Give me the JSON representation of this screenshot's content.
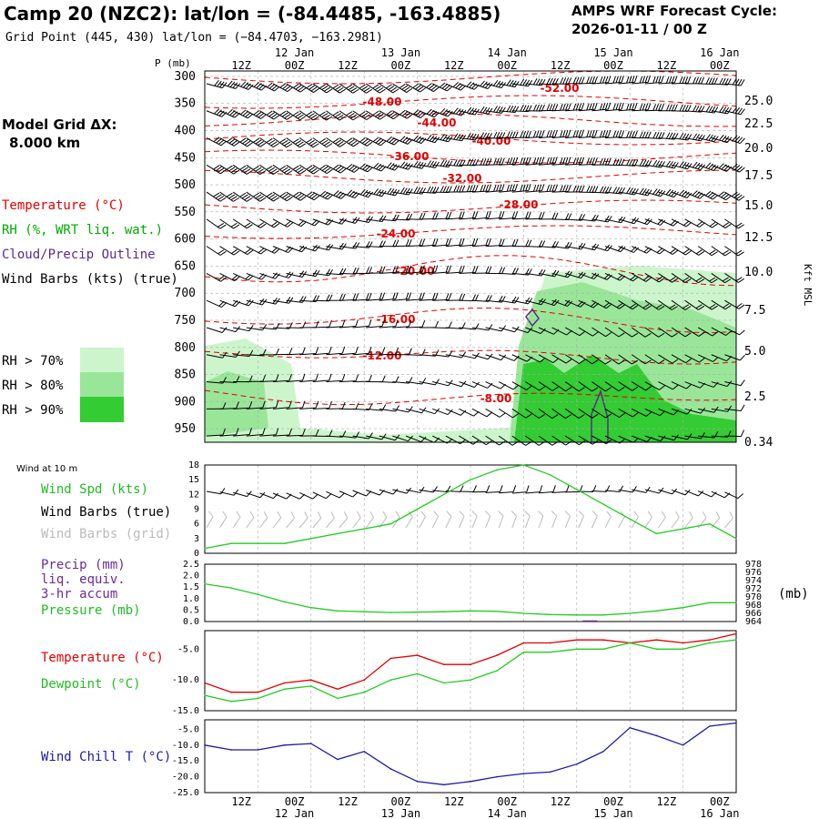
{
  "header": {
    "title": "Camp 20 (NZC2):  lat/lon = (-84.4485, -163.4885)",
    "subtitle": "Grid Point (445, 430) lat/lon = (−84.4703, −163.2981)",
    "cycle_label": "AMPS WRF Forecast Cycle:",
    "cycle_value": "2026-01-11 / 00  Z"
  },
  "left_labels": {
    "grid_title": "Model Grid ΔX:",
    "grid_value": "8.000 km",
    "temperature": "Temperature (°C)",
    "rh": "RH (%, WRT liq. wat.)",
    "cloud": "Cloud/Precip Outline",
    "wind_barbs": "Wind Barbs (kts) (true)",
    "rh70": "RH > 70%",
    "rh80": "RH > 80%",
    "rh90": "RH > 90%",
    "wind10m": "Wind at 10 m",
    "wind_spd": "Wind Spd (kts)",
    "wind_barbs_true": "Wind Barbs (true)",
    "wind_barbs_grid": "Wind Barbs (grid)",
    "precip": "Precip (mm)",
    "liq_equiv": "liq. equiv.",
    "accum": "3-hr accum",
    "pressure": "Pressure (mb)",
    "pressure_units": "(mb)",
    "temp2": "Temperature (°C)",
    "dewpoint": "Dewpoint (°C)",
    "windchill": "Wind Chill T (°C)"
  },
  "colors": {
    "temperature": "#e00000",
    "rh_text": "#00aa00",
    "cloud": "#5a2a8a",
    "rh70": "#ccf5cc",
    "rh80": "#99e699",
    "rh90": "#33cc33",
    "line_green": "#22cc22",
    "windchill": "#1a1aaa",
    "grid": "#999999"
  },
  "time_axis": {
    "hour_labels": [
      "12Z",
      "00Z",
      "12Z",
      "00Z",
      "12Z",
      "00Z",
      "12Z",
      "00Z",
      "12Z",
      "00Z"
    ],
    "date_labels": [
      "12 Jan",
      "13 Jan",
      "14 Jan",
      "15 Jan",
      "16 Jan"
    ]
  },
  "sounding": {
    "axis_label": "P (mb)",
    "pressure_levels": [
      300,
      350,
      400,
      450,
      500,
      550,
      600,
      650,
      700,
      750,
      800,
      850,
      900,
      950
    ],
    "kft_labels": [
      "25.0",
      "22.5",
      "20.0",
      "17.5",
      "15.0",
      "12.5",
      "10.0",
      "7.5",
      "5.0",
      "2.5",
      "0.34"
    ],
    "kft_axis": "Kft MSL",
    "temp_labels": [
      "-52.00",
      "-48.00",
      "-44.00",
      "-40.00",
      "-36.00",
      "-32.00",
      "-28.00",
      "-24.00",
      "-20.00",
      "-16.00",
      "-12.00",
      "-8.00"
    ]
  },
  "chart_data": [
    {
      "type": "line",
      "title": "Wind at 10 m",
      "ylabel": "Wind Spd (kts)",
      "ylim": [
        0,
        18
      ],
      "yticks": [
        0,
        3,
        6,
        9,
        12,
        15,
        18
      ],
      "x_hours": [
        0,
        6,
        12,
        18,
        24,
        30,
        36,
        42,
        48,
        54,
        60,
        66,
        72,
        78,
        84,
        90,
        96,
        102,
        108,
        114,
        120
      ],
      "series": [
        {
          "name": "Wind Spd (kts)",
          "values": [
            1,
            2,
            2,
            2,
            3,
            4,
            5,
            6,
            9,
            12,
            15,
            17,
            18,
            16,
            13,
            10,
            7,
            4,
            5,
            6,
            3
          ]
        }
      ]
    },
    {
      "type": "line",
      "ylabel": "Precip (mm) / Pressure (mb)",
      "ylim": [
        0,
        2.5
      ],
      "yticks": [
        0.0,
        0.5,
        1.0,
        1.5,
        2.0,
        2.5
      ],
      "y2lim": [
        964,
        978
      ],
      "y2ticks": [
        964,
        966,
        968,
        970,
        972,
        974,
        976,
        978
      ],
      "x_hours": [
        0,
        6,
        12,
        18,
        24,
        30,
        36,
        42,
        48,
        54,
        60,
        66,
        72,
        78,
        84,
        90,
        96,
        102,
        108,
        114,
        120
      ],
      "series": [
        {
          "name": "Pressure (mb)",
          "axis": "right",
          "values": [
            973.2,
            972.2,
            970.6,
            968.8,
            967.4,
            966.6,
            966.4,
            966.2,
            966.3,
            966.4,
            966.6,
            966.5,
            966.0,
            965.7,
            965.6,
            965.6,
            966.0,
            966.6,
            967.4,
            968.6,
            968.6
          ]
        },
        {
          "name": "Precip (mm)",
          "axis": "left",
          "type": "bar",
          "x_hour": 87,
          "value": 0.05
        }
      ]
    },
    {
      "type": "line",
      "ylim": [
        -15,
        -2
      ],
      "yticks": [
        -15,
        -10,
        -5
      ],
      "x_hours": [
        0,
        6,
        12,
        18,
        24,
        30,
        36,
        42,
        48,
        54,
        60,
        66,
        72,
        78,
        84,
        90,
        96,
        102,
        108,
        114,
        120
      ],
      "series": [
        {
          "name": "Temperature (°C)",
          "values": [
            -10.5,
            -12,
            -12,
            -10.5,
            -10,
            -11.5,
            -10,
            -6.5,
            -6,
            -7.5,
            -7.5,
            -6,
            -4,
            -4,
            -3.5,
            -3.5,
            -4,
            -3.5,
            -4,
            -3.5,
            -2.5
          ]
        },
        {
          "name": "Dewpoint (°C)",
          "values": [
            -12.5,
            -13.5,
            -13,
            -11.5,
            -11,
            -13,
            -12,
            -10,
            -9,
            -10.5,
            -10,
            -8.5,
            -5.5,
            -5.5,
            -5,
            -5,
            -4,
            -5,
            -5,
            -4,
            -3.5
          ]
        }
      ]
    },
    {
      "type": "line",
      "ylim": [
        -25,
        -2
      ],
      "yticks": [
        -25,
        -20,
        -15,
        -10,
        -5
      ],
      "x_hours": [
        0,
        6,
        12,
        18,
        24,
        30,
        36,
        42,
        48,
        54,
        60,
        66,
        72,
        78,
        84,
        90,
        96,
        102,
        108,
        114,
        120
      ],
      "series": [
        {
          "name": "Wind Chill T (°C)",
          "values": [
            -10,
            -11.5,
            -11.5,
            -10,
            -9.5,
            -14.5,
            -12,
            -17.5,
            -21.5,
            -22.5,
            -21.5,
            -20,
            -19,
            -18.5,
            -16,
            -12,
            -4.5,
            -7,
            -10,
            -4,
            -3
          ]
        }
      ]
    }
  ]
}
